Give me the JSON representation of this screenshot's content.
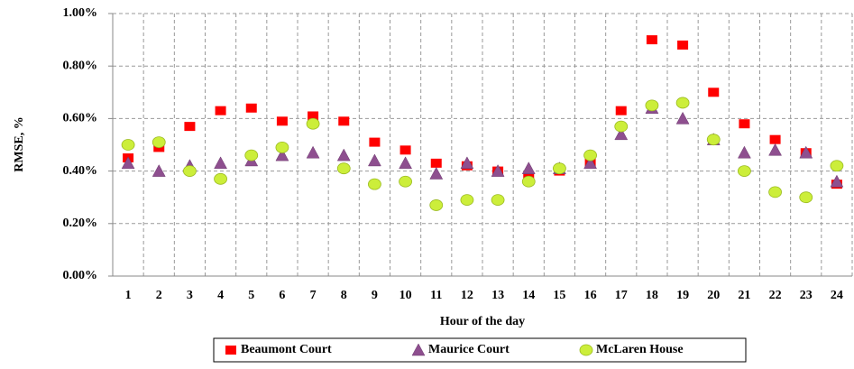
{
  "chart_data": {
    "type": "scatter",
    "y_label": "RMSE, %",
    "x_label": "Hour of the day",
    "categories": [
      "1",
      "2",
      "3",
      "4",
      "5",
      "6",
      "7",
      "8",
      "9",
      "10",
      "11",
      "12",
      "13",
      "14",
      "15",
      "16",
      "17",
      "18",
      "19",
      "20",
      "21",
      "22",
      "23",
      "24"
    ],
    "series": [
      {
        "name": "Beaumont Court",
        "color": "#ff0000",
        "marker": "square",
        "values": [
          0.45,
          0.49,
          0.57,
          0.63,
          0.64,
          0.59,
          0.61,
          0.59,
          0.51,
          0.48,
          0.43,
          0.42,
          0.4,
          0.38,
          0.4,
          0.43,
          0.63,
          0.9,
          0.88,
          0.7,
          0.58,
          0.52,
          0.47,
          0.35
        ]
      },
      {
        "name": "Maurice Court",
        "color": "#8e4f8f",
        "marker": "triangle",
        "values": [
          0.43,
          0.4,
          0.42,
          0.43,
          0.44,
          0.46,
          0.47,
          0.46,
          0.44,
          0.43,
          0.39,
          0.43,
          0.4,
          0.41,
          0.41,
          0.43,
          0.54,
          0.64,
          0.6,
          0.52,
          0.47,
          0.48,
          0.47,
          0.36
        ]
      },
      {
        "name": "McLaren House",
        "color": "#ccee3a",
        "marker": "circle",
        "values": [
          0.5,
          0.51,
          0.4,
          0.37,
          0.46,
          0.49,
          0.58,
          0.41,
          0.35,
          0.36,
          0.27,
          0.29,
          0.29,
          0.36,
          0.41,
          0.46,
          0.57,
          0.65,
          0.66,
          0.52,
          0.4,
          0.32,
          0.3,
          0.42
        ]
      }
    ],
    "ylim": [
      0,
      1
    ],
    "yticks": [
      {
        "value": 0,
        "label": "0.00%"
      },
      {
        "value": 0.2,
        "label": "0.20%"
      },
      {
        "value": 0.4,
        "label": "0.40%"
      },
      {
        "value": 0.6,
        "label": "0.60%"
      },
      {
        "value": 0.8,
        "label": "0.80%"
      },
      {
        "value": 1,
        "label": "1.00%"
      }
    ],
    "grid": true,
    "legend": "bottom"
  }
}
